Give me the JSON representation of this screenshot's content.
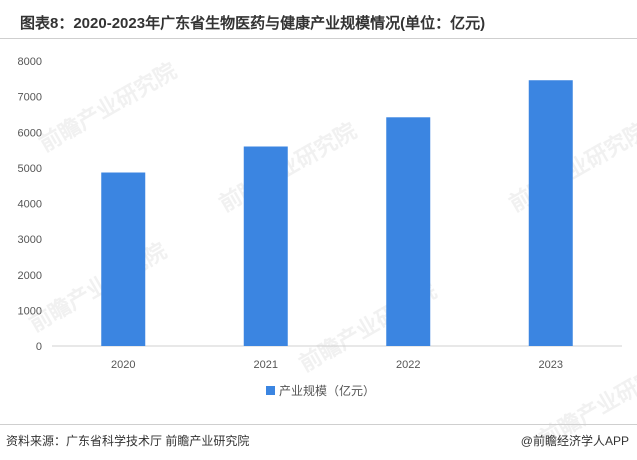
{
  "title": "图表8：2020-2023年广东省生物医药与健康产业规模情况(单位：亿元)",
  "footer": {
    "source": "资料来源：广东省科学技术厅 前瞻产业研究院",
    "credit": "@前瞻经济学人APP"
  },
  "watermark": "前瞻产业研究院",
  "chart_data": {
    "type": "bar",
    "categories": [
      "2020",
      "2021",
      "2022",
      "2023"
    ],
    "series": [
      {
        "name": "产业规模（亿元）",
        "values": [
          4870,
          5600,
          6420,
          7460
        ]
      }
    ],
    "ylim": [
      0,
      8000
    ],
    "yticks": [
      0,
      1000,
      2000,
      3000,
      4000,
      5000,
      6000,
      7000,
      8000
    ],
    "grid": false,
    "legend": "bottom",
    "color": "#3b85e1"
  }
}
